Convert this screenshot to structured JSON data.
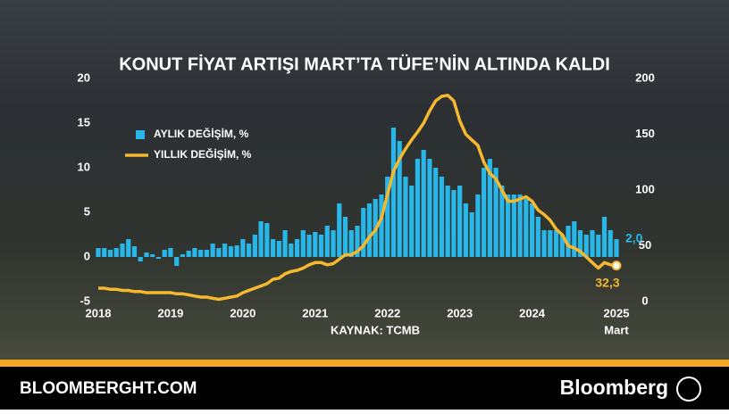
{
  "chart_data": {
    "type": "bar-line",
    "title": "KONUT FİYAT ARTIŞI MART’TA TÜFE’NİN ALTINDA KALDI",
    "source": "KAYNAK: TCMB",
    "categories": [
      "2018",
      null,
      null,
      null,
      null,
      null,
      null,
      null,
      null,
      null,
      null,
      null,
      "2019",
      null,
      null,
      null,
      null,
      null,
      null,
      null,
      null,
      null,
      null,
      null,
      "2020",
      null,
      null,
      null,
      null,
      null,
      null,
      null,
      null,
      null,
      null,
      null,
      "2021",
      null,
      null,
      null,
      null,
      null,
      null,
      null,
      null,
      null,
      null,
      null,
      "2022",
      null,
      null,
      null,
      null,
      null,
      null,
      null,
      null,
      null,
      null,
      null,
      "2023",
      null,
      null,
      null,
      null,
      null,
      null,
      null,
      null,
      null,
      null,
      null,
      "2024",
      null,
      null,
      null,
      null,
      null,
      null,
      null,
      null,
      null,
      null,
      null,
      null,
      null,
      "2025"
    ],
    "last_category_sublabel": "Mart",
    "ylim": [
      -5,
      20
    ],
    "yticks": [
      -5,
      0,
      5,
      10,
      15,
      20
    ],
    "y2lim": [
      0,
      200
    ],
    "y2ticks": [
      0,
      50,
      100,
      150,
      200
    ],
    "series": [
      {
        "name": "AYLIK DEĞİŞİM, %",
        "type": "bar",
        "color": "#29b6e8",
        "axis": "y",
        "values": [
          1,
          1,
          0.8,
          1,
          1.5,
          2,
          1.2,
          -0.5,
          0.5,
          0.3,
          -0.2,
          0.8,
          1,
          -1,
          0.3,
          0.7,
          1,
          0.8,
          0.8,
          1.5,
          1,
          1.5,
          1.2,
          1.3,
          2,
          1.5,
          2.5,
          4,
          3.8,
          2,
          1.8,
          3,
          1.5,
          2,
          3,
          2.5,
          2.8,
          2.5,
          3.5,
          3,
          6,
          4.5,
          3,
          3.5,
          5.5,
          6,
          6.5,
          7,
          9,
          14.5,
          13,
          9,
          8,
          11,
          12,
          11,
          10,
          9,
          8,
          7.5,
          8,
          6,
          5,
          7,
          10,
          11,
          10,
          8,
          7,
          7,
          7,
          6.5,
          6,
          4.5,
          3,
          3,
          3,
          2.5,
          3.5,
          4,
          3,
          2.5,
          3,
          2.5,
          4.5,
          3,
          2.0
        ],
        "value_labels": [
          null,
          null,
          null,
          null,
          null,
          null,
          null,
          null,
          null,
          null,
          null,
          null,
          null,
          null,
          null,
          null,
          null,
          null,
          null,
          null,
          null,
          null,
          null,
          null,
          null,
          null,
          null,
          null,
          null,
          null,
          null,
          null,
          null,
          null,
          null,
          null,
          null,
          null,
          null,
          null,
          null,
          null,
          null,
          null,
          null,
          null,
          null,
          null,
          null,
          null,
          null,
          null,
          null,
          null,
          null,
          null,
          null,
          null,
          null,
          null,
          null,
          null,
          null,
          null,
          null,
          null,
          null,
          null,
          null,
          null,
          null,
          null,
          null,
          null,
          null,
          null,
          null,
          null,
          null,
          null,
          null,
          null,
          null,
          null,
          null,
          null,
          "2,0"
        ]
      },
      {
        "name": "YILLIK DEĞİŞİM, %",
        "type": "line",
        "color": "#f5b82e",
        "axis": "y2",
        "values": [
          12,
          12,
          11,
          11,
          10,
          10,
          9,
          9,
          8,
          8,
          8,
          8,
          8,
          7,
          7,
          6,
          5,
          4,
          4,
          3,
          2,
          3,
          4,
          5,
          8,
          10,
          12,
          14,
          16,
          20,
          21,
          25,
          27,
          28,
          30,
          33,
          35,
          35,
          33,
          34,
          38,
          42,
          42,
          45,
          50,
          58,
          64,
          75,
          96,
          117,
          128,
          137,
          145,
          152,
          160,
          171,
          180,
          184,
          185,
          180,
          162,
          150,
          145,
          140,
          125,
          115,
          110,
          100,
          90,
          90,
          92,
          94,
          90,
          82,
          78,
          73,
          65,
          60,
          50,
          48,
          45,
          40,
          35,
          30,
          35,
          33,
          32.3
        ],
        "value_labels": [
          null,
          null,
          null,
          null,
          null,
          null,
          null,
          null,
          null,
          null,
          null,
          null,
          null,
          null,
          null,
          null,
          null,
          null,
          null,
          null,
          null,
          null,
          null,
          null,
          null,
          null,
          null,
          null,
          null,
          null,
          null,
          null,
          null,
          null,
          null,
          null,
          null,
          null,
          null,
          null,
          null,
          null,
          null,
          null,
          null,
          null,
          null,
          null,
          null,
          null,
          null,
          null,
          null,
          null,
          null,
          null,
          null,
          null,
          null,
          null,
          null,
          null,
          null,
          null,
          null,
          null,
          null,
          null,
          null,
          null,
          null,
          null,
          null,
          null,
          null,
          null,
          null,
          null,
          null,
          null,
          null,
          null,
          null,
          null,
          null,
          null,
          "32,3"
        ]
      }
    ]
  },
  "footer": {
    "site": "BLOOMBERGHT.COM",
    "brand": "Bloomberg"
  }
}
